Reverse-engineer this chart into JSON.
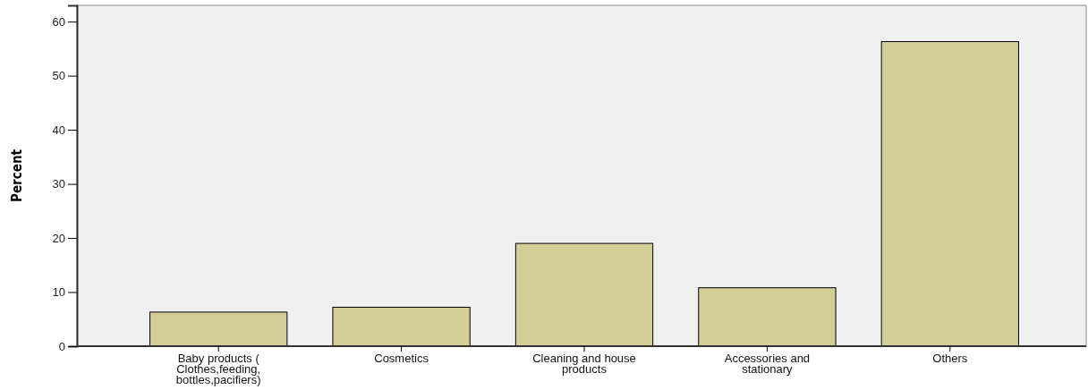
{
  "chart_data": {
    "type": "bar",
    "ylabel": "Percent",
    "categories": [
      "Baby products ( Clothes,feeding, bottles,pacifiers)",
      "Cosmetics",
      "Cleaning and house products",
      "Accessories and stationary",
      "Others"
    ],
    "values": [
      6.3,
      7.2,
      19.0,
      10.8,
      56.3
    ],
    "color": "#d3ce98",
    "ylim": [
      0,
      63
    ],
    "yticks": [
      0,
      10,
      20,
      30,
      40,
      50,
      60
    ],
    "grid": false
  }
}
